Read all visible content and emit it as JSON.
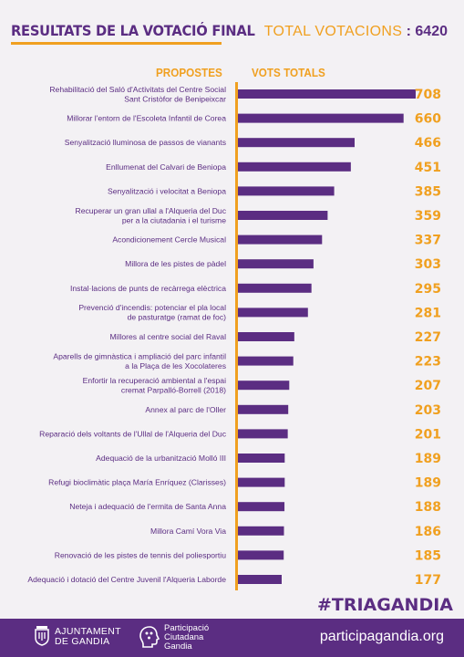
{
  "header": {
    "title": "RESULTATS DE LA VOTACIÓ FINAL",
    "total_label": "TOTAL VOTACIONS",
    "total_separator": ":",
    "total_value": "6420"
  },
  "columns": {
    "proposals": "PROPOSTES",
    "votes": "VOTS TOTALS"
  },
  "hashtag": "#TRIAGANDIA",
  "footer": {
    "logo1_line1": "AJUNTAMENT",
    "logo1_line2": "DE GANDIA",
    "logo2_line1": "Participació",
    "logo2_line2": "Ciutadana",
    "logo2_line3": "Gandia",
    "url": "participagandia.org"
  },
  "colors": {
    "purple": "#5b2d82",
    "orange": "#f0a020",
    "background": "#f3f1f4"
  },
  "chart_data": {
    "type": "bar",
    "orientation": "horizontal",
    "categories": [
      [
        "Rehabilitació del Saló d'Activitats del Centre Social",
        "Sant Cristòfor de Benipeixcar"
      ],
      [
        "Millorar l'entorn de l'Escoleta Infantil de Corea"
      ],
      [
        "Senyalització lluminosa de passos de vianants"
      ],
      [
        "Enllumenat del Calvari de Beniopa"
      ],
      [
        "Senyalització i velocitat a Beniopa"
      ],
      [
        "Recuperar un gran ullal a l'Alqueria del Duc",
        "per a la ciutadania i el turisme"
      ],
      [
        "Acondicionement Cercle Musical"
      ],
      [
        "Millora de les pistes de pàdel"
      ],
      [
        "Instal·lacions de punts de recàrrega elèctrica"
      ],
      [
        "Prevenció d'incendis: potenciar el pla local",
        "de pasturatge (ramat de foc)"
      ],
      [
        "Millores al centre social del Raval"
      ],
      [
        "Aparells de gimnàstica i ampliació del parc infantil",
        "a la Plaça de les Xocolateres"
      ],
      [
        "Enfortir la recuperació ambiental a l'espai",
        "cremat Parpalló-Borrell (2018)"
      ],
      [
        "Annex al parc de l'Oller"
      ],
      [
        "Reparació dels voltants de l'Ullal de l'Alqueria del Duc"
      ],
      [
        "Adequació de la urbanització Molló III"
      ],
      [
        "Refugi bioclimàtic plaça María Enríquez (Clarisses)"
      ],
      [
        "Neteja i adequació de l'ermita de Santa Anna"
      ],
      [
        "Millora Camí Vora Via"
      ],
      [
        "Renovació de les pistes de tennis del poliesportiu"
      ],
      [
        "Adequació i dotació del Centre Juvenil l'Alqueria Laborde"
      ]
    ],
    "values": [
      708,
      660,
      466,
      451,
      385,
      359,
      337,
      303,
      295,
      281,
      227,
      223,
      207,
      203,
      201,
      189,
      189,
      188,
      186,
      185,
      177
    ],
    "xlim": [
      0,
      708
    ]
  }
}
